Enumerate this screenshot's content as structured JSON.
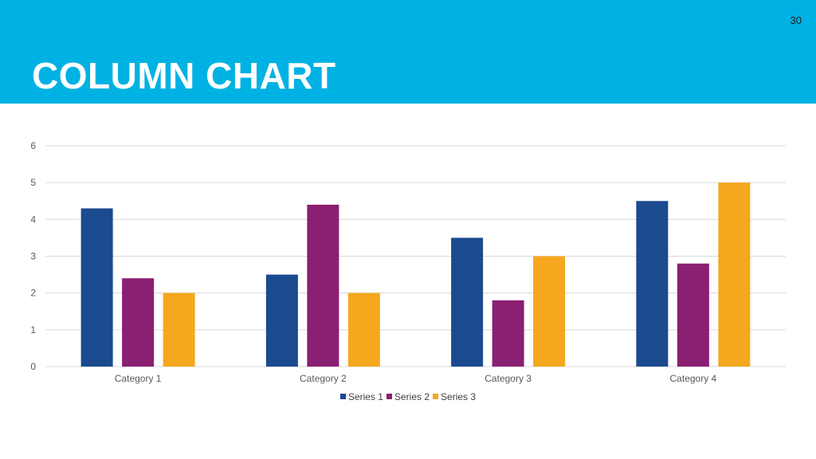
{
  "slide": {
    "number": "30",
    "title": "COLUMN CHART"
  },
  "chart_data": {
    "type": "bar",
    "categories": [
      "Category 1",
      "Category 2",
      "Category 3",
      "Category 4"
    ],
    "series": [
      {
        "name": "Series 1",
        "values": [
          4.3,
          2.5,
          3.5,
          4.5
        ],
        "color": "#1b4a8e"
      },
      {
        "name": "Series 2",
        "values": [
          2.4,
          4.4,
          1.8,
          2.8
        ],
        "color": "#8b1f72"
      },
      {
        "name": "Series 3",
        "values": [
          2,
          2,
          3,
          5
        ],
        "color": "#f5a81e"
      }
    ],
    "yticks": [
      "0",
      "1",
      "2",
      "3",
      "4",
      "5",
      "6"
    ],
    "ylim": [
      0,
      6
    ],
    "grid": true,
    "legend_position": "bottom",
    "title": "",
    "xlabel": "",
    "ylabel": ""
  },
  "colors": {
    "header": "#00b2e3",
    "gridline": "#d9d9d9",
    "axis_text": "#595959"
  }
}
